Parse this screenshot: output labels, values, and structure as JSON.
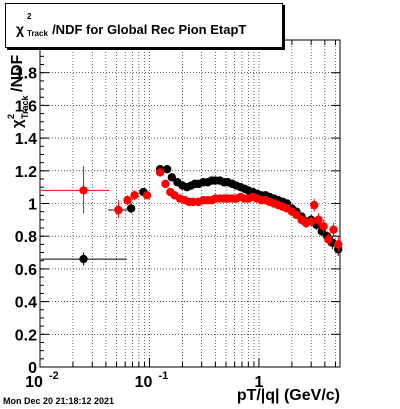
{
  "title": {
    "symbol": "χ",
    "sup": "2",
    "sub": "Track",
    "rest": "/NDF for Global Rec Pion EtapT"
  },
  "datestamp": "Mon Dec 20 21:18:12 2021",
  "chart_data": {
    "type": "scatter",
    "xscale": "log",
    "xlim": [
      0.01,
      5.5
    ],
    "ylim": [
      0,
      2.0
    ],
    "xlabel": "pT/|q| (GeV/c)",
    "ylabel": "/NDF",
    "ylabel_symbol": "χ",
    "ylabel_sup": "2",
    "ylabel_sub": "Track",
    "grid": true,
    "x_ticks": [
      {
        "value": 0.01,
        "base": "10",
        "exp": "-2"
      },
      {
        "value": 0.1,
        "base": "10",
        "exp": "-1"
      },
      {
        "value": 1,
        "base": "1",
        "exp": ""
      }
    ],
    "y_ticks": [
      {
        "value": 0,
        "label": "0"
      },
      {
        "value": 0.2,
        "label": "0.2"
      },
      {
        "value": 0.4,
        "label": "0.4"
      },
      {
        "value": 0.6,
        "label": "0.6"
      },
      {
        "value": 0.8,
        "label": "0.8"
      },
      {
        "value": 1.0,
        "label": "1"
      },
      {
        "value": 1.2,
        "label": "1.2"
      },
      {
        "value": 1.4,
        "label": "1.4"
      },
      {
        "value": 1.6,
        "label": "1.6"
      },
      {
        "value": 1.8,
        "label": "1.8"
      },
      {
        "value": 2.0,
        "label": "2"
      }
    ],
    "series": [
      {
        "color": "#000000",
        "points": [
          {
            "x": 0.025,
            "y": 0.66,
            "xlo": 0.0102,
            "xhi": 0.062,
            "ylo": 0.62,
            "yhi": 0.7
          },
          {
            "x": 0.052,
            "y": 0.96,
            "xlo": 0.042,
            "xhi": 0.062,
            "ylo": 0.93,
            "yhi": 0.99
          },
          {
            "x": 0.068,
            "y": 0.97,
            "xlo": 0.062,
            "xhi": 0.074,
            "ylo": 0.94,
            "yhi": 1.0
          },
          {
            "x": 0.088,
            "y": 1.07,
            "xlo": 0.082,
            "xhi": 0.094,
            "ylo": 1.05,
            "yhi": 1.09
          },
          {
            "x": 0.125,
            "y": 1.21,
            "xlo": 0.12,
            "xhi": 0.13,
            "ylo": 1.2,
            "yhi": 1.22
          },
          {
            "x": 0.145,
            "y": 1.21,
            "xlo": 0.14,
            "xhi": 0.15,
            "ylo": 1.2,
            "yhi": 1.22
          },
          {
            "x": 0.16,
            "y": 1.16
          },
          {
            "x": 0.18,
            "y": 1.13
          },
          {
            "x": 0.2,
            "y": 1.11
          },
          {
            "x": 0.22,
            "y": 1.1
          },
          {
            "x": 0.24,
            "y": 1.11
          },
          {
            "x": 0.26,
            "y": 1.12
          },
          {
            "x": 0.28,
            "y": 1.12
          },
          {
            "x": 0.31,
            "y": 1.13
          },
          {
            "x": 0.34,
            "y": 1.13
          },
          {
            "x": 0.37,
            "y": 1.14
          },
          {
            "x": 0.4,
            "y": 1.14
          },
          {
            "x": 0.44,
            "y": 1.14
          },
          {
            "x": 0.48,
            "y": 1.13
          },
          {
            "x": 0.52,
            "y": 1.13
          },
          {
            "x": 0.57,
            "y": 1.12
          },
          {
            "x": 0.62,
            "y": 1.11
          },
          {
            "x": 0.68,
            "y": 1.1
          },
          {
            "x": 0.74,
            "y": 1.09
          },
          {
            "x": 0.8,
            "y": 1.08
          },
          {
            "x": 0.88,
            "y": 1.07
          },
          {
            "x": 0.96,
            "y": 1.06
          },
          {
            "x": 1.05,
            "y": 1.05
          },
          {
            "x": 1.15,
            "y": 1.05
          },
          {
            "x": 1.25,
            "y": 1.04
          },
          {
            "x": 1.37,
            "y": 1.03
          },
          {
            "x": 1.5,
            "y": 1.02
          },
          {
            "x": 1.65,
            "y": 1.01
          },
          {
            "x": 1.8,
            "y": 1.0
          },
          {
            "x": 2.0,
            "y": 0.97
          },
          {
            "x": 2.2,
            "y": 0.95
          },
          {
            "x": 2.45,
            "y": 0.92
          },
          {
            "x": 2.7,
            "y": 0.89
          },
          {
            "x": 3.0,
            "y": 0.9,
            "ylo": 0.87,
            "yhi": 0.93
          },
          {
            "x": 3.35,
            "y": 0.87,
            "ylo": 0.84,
            "yhi": 0.9
          },
          {
            "x": 3.75,
            "y": 0.83,
            "ylo": 0.8,
            "yhi": 0.86
          },
          {
            "x": 4.2,
            "y": 0.8,
            "ylo": 0.77,
            "yhi": 0.83
          },
          {
            "x": 4.7,
            "y": 0.76,
            "ylo": 0.72,
            "yhi": 0.8
          },
          {
            "x": 5.3,
            "y": 0.72,
            "ylo": 0.68,
            "yhi": 0.76
          }
        ]
      },
      {
        "color": "#ff0000",
        "points": [
          {
            "x": 0.025,
            "y": 1.08,
            "xlo": 0.0102,
            "xhi": 0.043,
            "ylo": 0.94,
            "yhi": 1.23
          },
          {
            "x": 0.052,
            "y": 0.96,
            "xlo": 0.046,
            "xhi": 0.057,
            "ylo": 0.91,
            "yhi": 1.02
          },
          {
            "x": 0.063,
            "y": 1.02,
            "xlo": 0.058,
            "xhi": 0.068,
            "ylo": 0.99,
            "yhi": 1.05
          },
          {
            "x": 0.073,
            "y": 1.05,
            "xlo": 0.068,
            "xhi": 0.078,
            "ylo": 1.02,
            "yhi": 1.08
          },
          {
            "x": 0.095,
            "y": 1.05,
            "xlo": 0.09,
            "xhi": 0.1,
            "ylo": 1.03,
            "yhi": 1.07
          },
          {
            "x": 0.125,
            "y": 1.19,
            "xlo": 0.12,
            "xhi": 0.13,
            "ylo": 1.17,
            "yhi": 1.21
          },
          {
            "x": 0.14,
            "y": 1.12
          },
          {
            "x": 0.155,
            "y": 1.07
          },
          {
            "x": 0.17,
            "y": 1.05
          },
          {
            "x": 0.19,
            "y": 1.03
          },
          {
            "x": 0.21,
            "y": 1.02
          },
          {
            "x": 0.23,
            "y": 1.01
          },
          {
            "x": 0.25,
            "y": 1.01
          },
          {
            "x": 0.28,
            "y": 1.01
          },
          {
            "x": 0.31,
            "y": 1.02
          },
          {
            "x": 0.34,
            "y": 1.02
          },
          {
            "x": 0.37,
            "y": 1.02
          },
          {
            "x": 0.4,
            "y": 1.03
          },
          {
            "x": 0.44,
            "y": 1.03
          },
          {
            "x": 0.48,
            "y": 1.03
          },
          {
            "x": 0.52,
            "y": 1.03
          },
          {
            "x": 0.57,
            "y": 1.03
          },
          {
            "x": 0.62,
            "y": 1.03
          },
          {
            "x": 0.68,
            "y": 1.04
          },
          {
            "x": 0.74,
            "y": 1.03
          },
          {
            "x": 0.8,
            "y": 1.03
          },
          {
            "x": 0.88,
            "y": 1.04
          },
          {
            "x": 0.96,
            "y": 1.03
          },
          {
            "x": 1.05,
            "y": 1.02
          },
          {
            "x": 1.15,
            "y": 1.02
          },
          {
            "x": 1.25,
            "y": 1.01
          },
          {
            "x": 1.37,
            "y": 1.0
          },
          {
            "x": 1.5,
            "y": 0.99
          },
          {
            "x": 1.65,
            "y": 0.98
          },
          {
            "x": 1.8,
            "y": 0.97
          },
          {
            "x": 2.0,
            "y": 0.95
          },
          {
            "x": 2.2,
            "y": 0.93
          },
          {
            "x": 2.45,
            "y": 0.9,
            "ylo": 0.87,
            "yhi": 0.93
          },
          {
            "x": 2.7,
            "y": 0.88,
            "ylo": 0.85,
            "yhi": 0.91
          },
          {
            "x": 3.0,
            "y": 0.89,
            "ylo": 0.86,
            "yhi": 0.92
          },
          {
            "x": 3.2,
            "y": 0.99,
            "ylo": 0.95,
            "yhi": 1.03
          },
          {
            "x": 3.5,
            "y": 0.9,
            "ylo": 0.86,
            "yhi": 0.94
          },
          {
            "x": 3.9,
            "y": 0.86,
            "ylo": 0.82,
            "yhi": 0.9
          },
          {
            "x": 4.3,
            "y": 0.78,
            "ylo": 0.74,
            "yhi": 0.82
          },
          {
            "x": 4.8,
            "y": 0.84,
            "ylo": 0.8,
            "yhi": 0.88
          },
          {
            "x": 5.3,
            "y": 0.75,
            "ylo": 0.7,
            "yhi": 0.8
          }
        ]
      }
    ]
  }
}
